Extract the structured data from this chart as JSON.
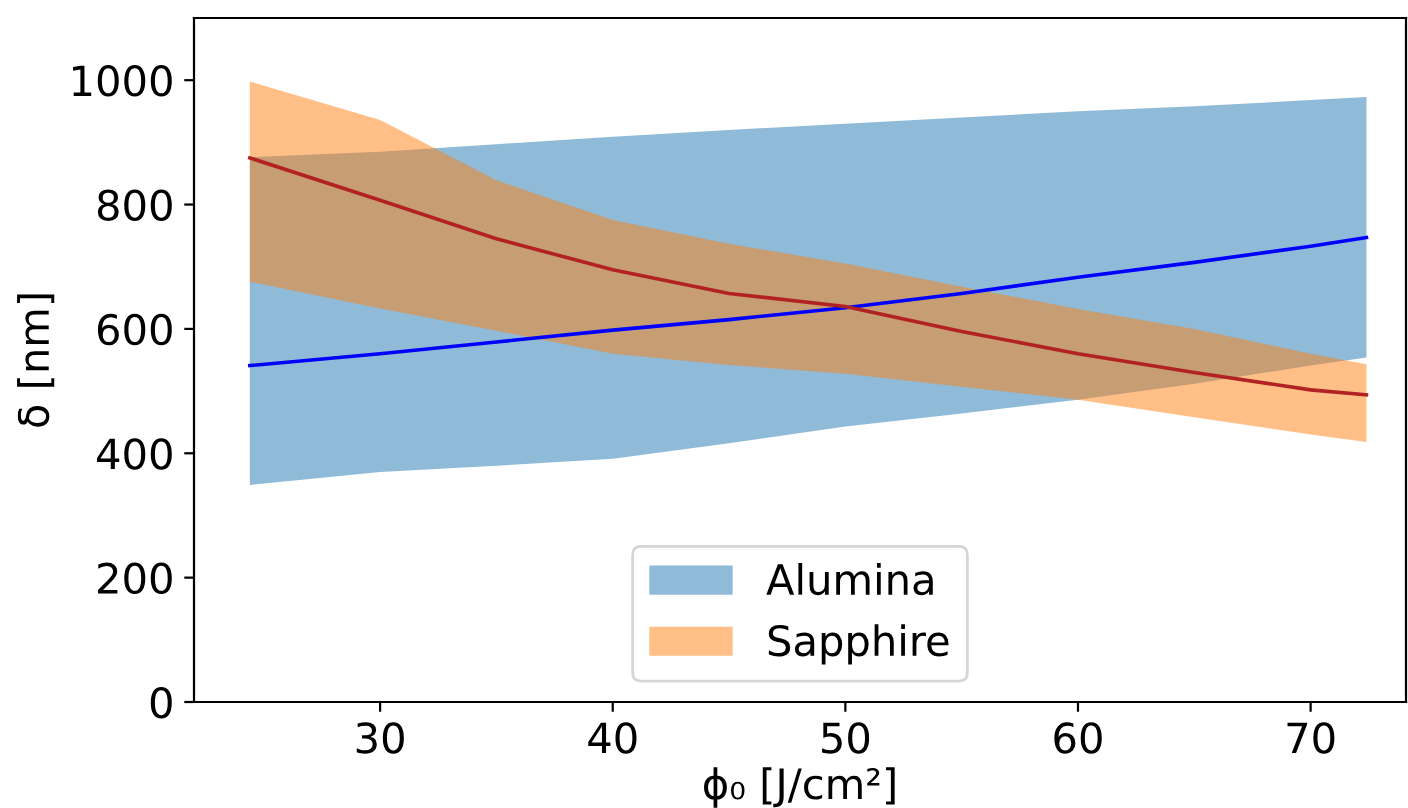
{
  "chart_data": {
    "type": "line",
    "xlabel": "ϕ₀ [J/cm²]",
    "ylabel": "δ [nm]",
    "x": [
      24.4,
      30,
      35,
      40,
      45,
      50,
      55,
      60,
      65,
      70,
      72.4
    ],
    "series": [
      {
        "name": "Alumina",
        "color": "#1f77b4",
        "values": [
          null,
          null,
          null,
          null,
          null,
          null,
          null,
          null,
          null,
          null,
          null
        ],
        "lower": [
          349,
          370,
          380,
          391,
          416,
          443,
          464,
          486,
          512,
          541,
          554
        ],
        "upper": [
          876,
          885,
          897,
          909,
          920,
          930,
          940,
          950,
          958,
          968,
          973
        ]
      },
      {
        "name": "Sapphire",
        "color": "#ff7f0e",
        "values": [
          null,
          null,
          null,
          null,
          null,
          null,
          null,
          null,
          null,
          null,
          null
        ],
        "lower": [
          676,
          633,
          597,
          560,
          542,
          528,
          507,
          486,
          458,
          430,
          418
        ],
        "upper": [
          998,
          936,
          839,
          775,
          737,
          705,
          668,
          632,
          600,
          560,
          543
        ]
      },
      {
        "color": "#0000ff",
        "values": [
          541,
          560,
          579,
          598,
          615,
          634,
          657,
          683,
          707,
          733,
          747
        ]
      },
      {
        "color": "#b22222",
        "values": [
          875,
          807,
          745,
          695,
          657,
          636,
          596,
          560,
          530,
          502,
          494
        ]
      }
    ],
    "xlim": [
      22.0,
      74.1
    ],
    "xticks": [
      30,
      40,
      50,
      60,
      70
    ],
    "ylim": [
      0,
      1100
    ],
    "yticks": [
      0,
      200,
      400,
      600,
      800,
      1000
    ],
    "legend": "bottom",
    "grid": false
  }
}
